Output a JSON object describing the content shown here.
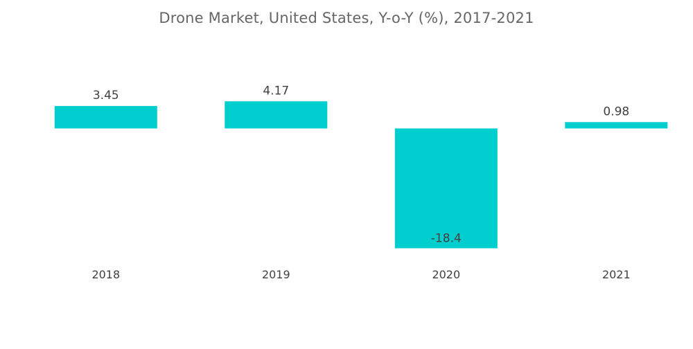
{
  "chart_data": {
    "type": "bar",
    "title": "Drone Market, United States, Y-o-Y (%), 2017-2021",
    "categories": [
      "2018",
      "2019",
      "2020",
      "2021"
    ],
    "values": [
      3.45,
      4.17,
      -18.4,
      0.98
    ],
    "data_labels": [
      "3.45",
      "4.17",
      "-18.4",
      "0.98"
    ],
    "xlabel": "",
    "ylabel": "",
    "ylim": [
      -18.4,
      4.17
    ],
    "grid": false,
    "legend": "none",
    "bar_color": "#00CDCD",
    "label_color": "#404040",
    "title_color": "#666666"
  }
}
